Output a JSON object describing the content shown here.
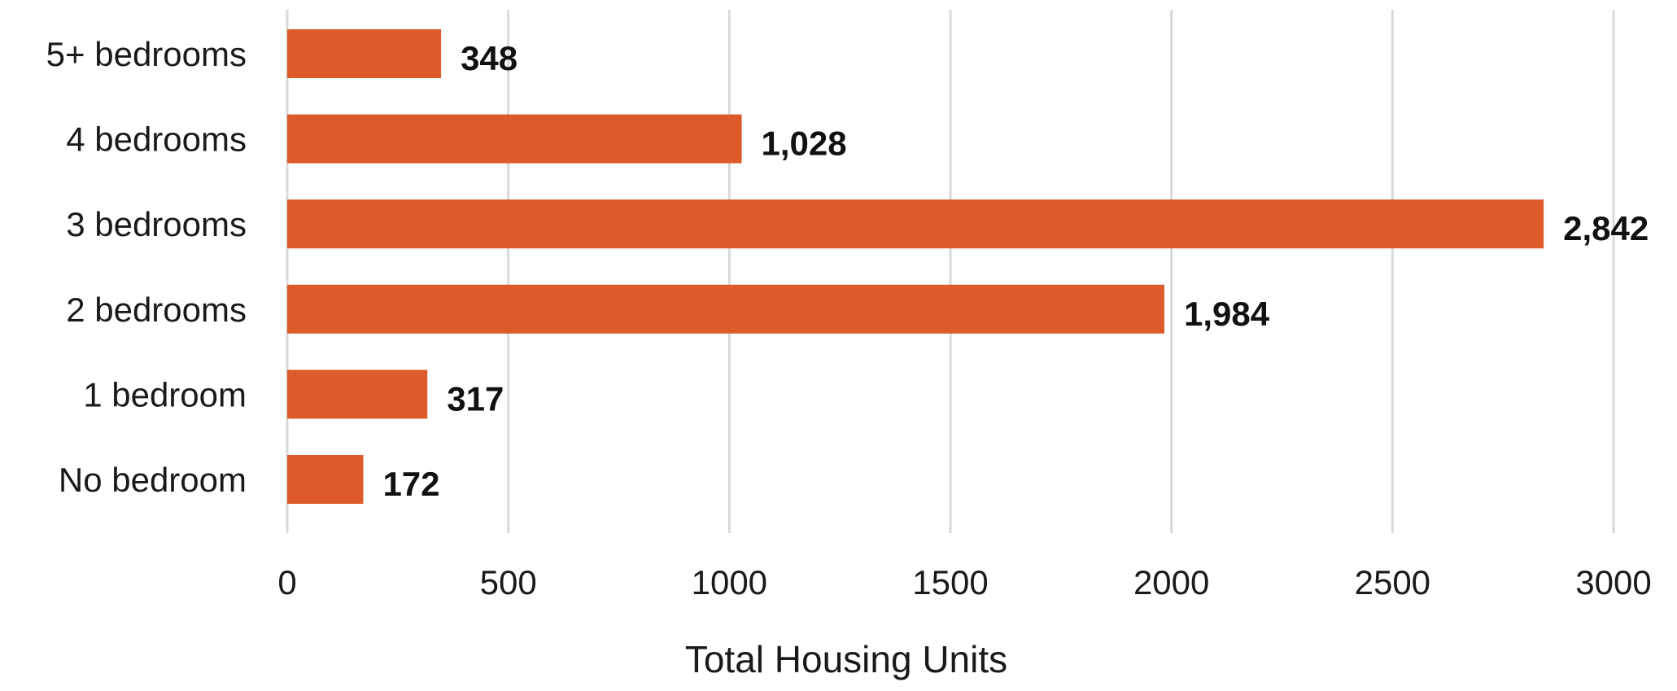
{
  "chart_data": {
    "type": "bar",
    "orientation": "horizontal",
    "categories": [
      "5+ bedrooms",
      "4 bedrooms",
      "3 bedrooms",
      "2 bedrooms",
      "1 bedroom",
      "No bedroom"
    ],
    "values": [
      348,
      1028,
      2842,
      1984,
      317,
      172
    ],
    "value_labels": [
      "348",
      "1,028",
      "2,842",
      "1,984",
      "317",
      "172"
    ],
    "xlabel": "Total Housing Units",
    "ylabel": "",
    "title": "",
    "xlim": [
      0,
      3000
    ],
    "xticks": [
      0,
      500,
      1000,
      1500,
      2000,
      2500,
      3000
    ],
    "xtick_labels": [
      "0",
      "500",
      "1000",
      "1500",
      "2000",
      "2500",
      "3000"
    ],
    "grid": "vertical",
    "legend": "none",
    "colors": {
      "bar": "#dd5a2b",
      "grid": "#d9d9d9",
      "text": "#1a1a1a"
    }
  }
}
